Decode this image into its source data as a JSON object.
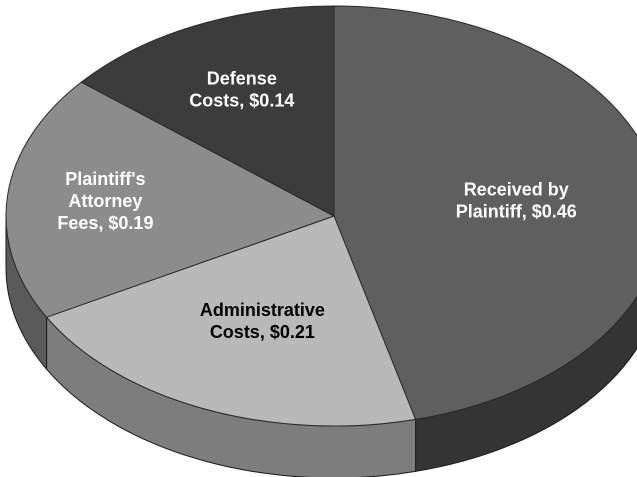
{
  "chart_data": {
    "type": "pie",
    "title": "",
    "unit": "$",
    "slices": [
      {
        "label_lines": [
          "Received by",
          "Plaintiff, $0.46"
        ],
        "name": "Received by Plaintiff",
        "value": 0.46,
        "color": "#5f5f5f",
        "side_color": "#343434",
        "text_color": "#ffffff"
      },
      {
        "label_lines": [
          "Administrative",
          "Costs, $0.21"
        ],
        "name": "Administrative Costs",
        "value": 0.21,
        "color": "#b9b9b9",
        "side_color": "#7d7d7d",
        "text_color": "#000000"
      },
      {
        "label_lines": [
          "Plaintiff's",
          "Attorney",
          "Fees, $0.19"
        ],
        "name": "Plaintiff's Attorney Fees",
        "value": 0.19,
        "color": "#8c8c8c",
        "side_color": "#5a5a5a",
        "text_color": "#ffffff"
      },
      {
        "label_lines": [
          "Defense",
          "Costs, $0.14"
        ],
        "name": "Defense Costs",
        "value": 0.14,
        "color": "#3c3c3c",
        "side_color": "#232323",
        "text_color": "#ffffff"
      }
    ]
  }
}
